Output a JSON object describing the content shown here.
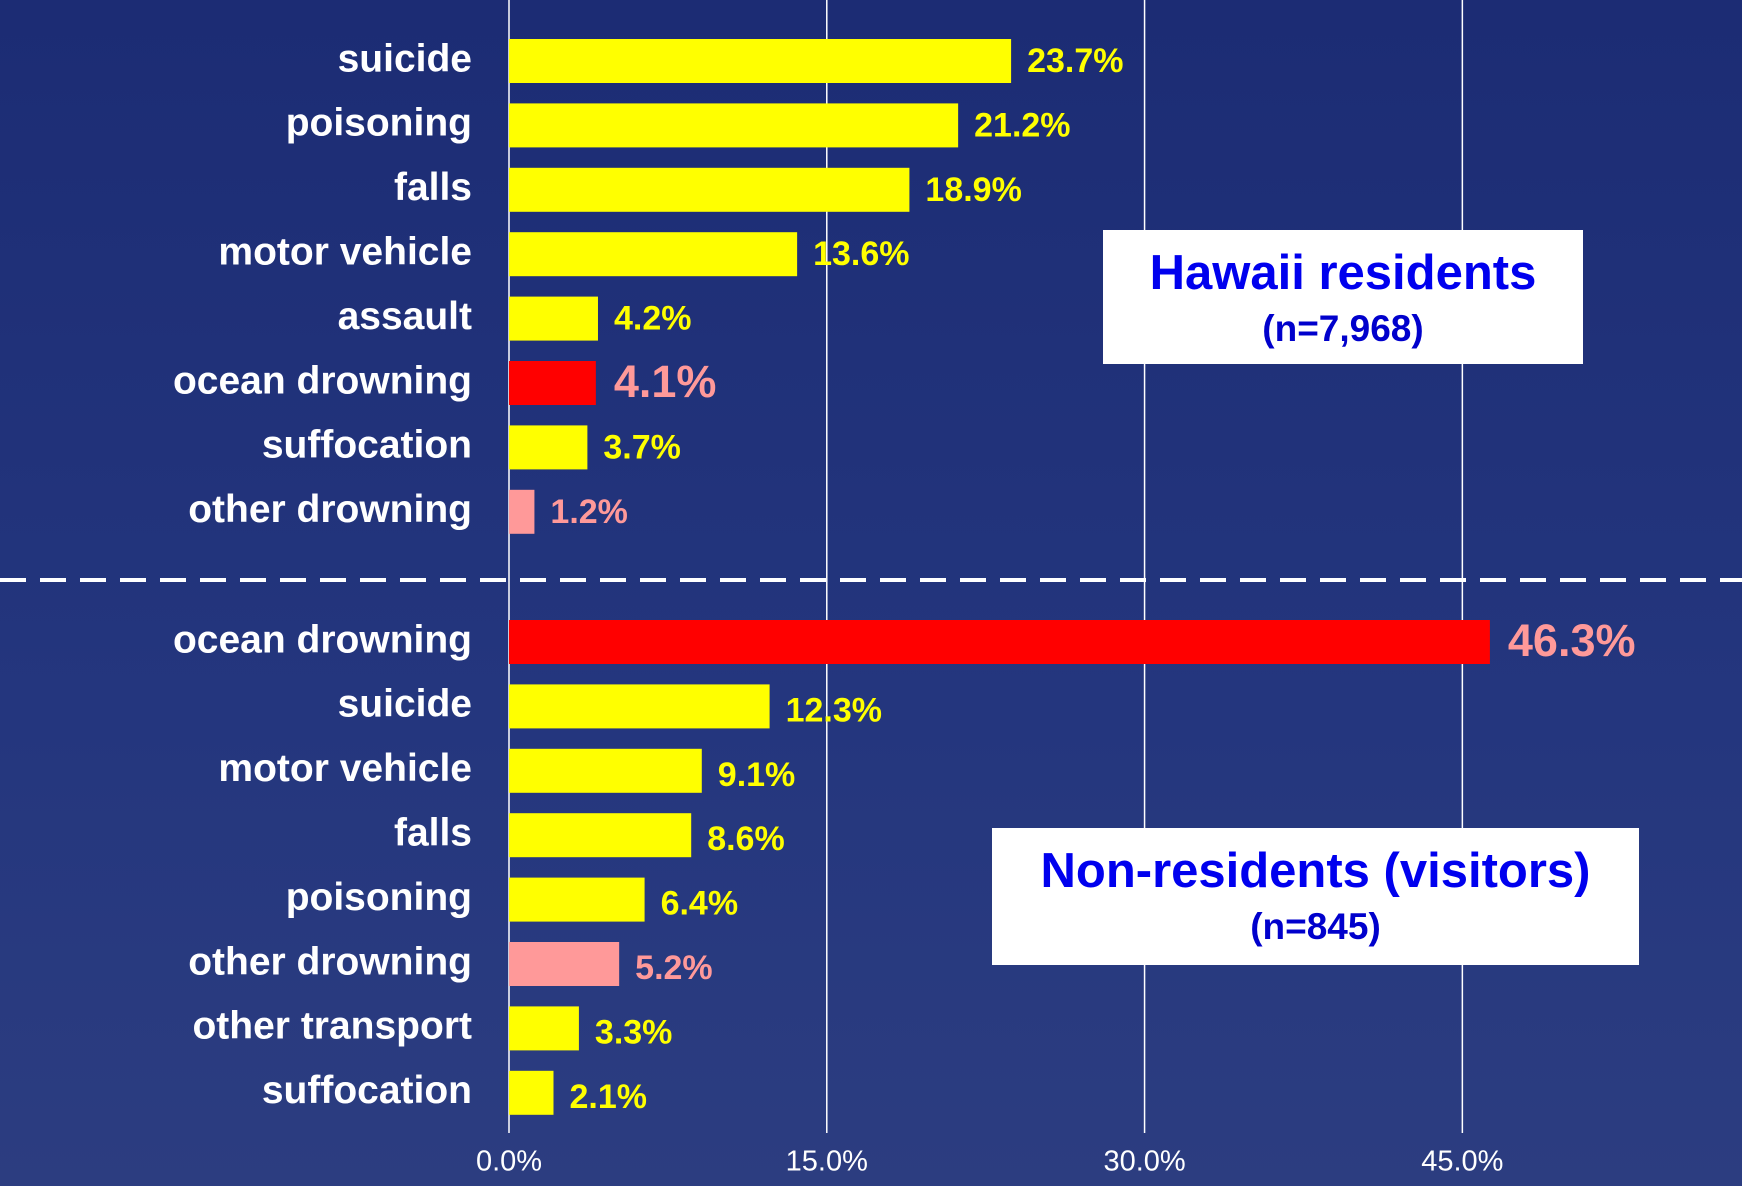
{
  "chart_data": [
    {
      "type": "bar",
      "orientation": "horizontal",
      "annotation": {
        "title": "Hawaii residents",
        "subtitle": "(n=7,968)"
      },
      "categories": [
        "suicide",
        "poisoning",
        "falls",
        "motor vehicle",
        "assault",
        "ocean drowning",
        "suffocation",
        "other drowning"
      ],
      "values": [
        23.7,
        21.2,
        18.9,
        13.6,
        4.2,
        4.1,
        3.7,
        1.2
      ],
      "value_labels": [
        "23.7%",
        "21.2%",
        "18.9%",
        "13.6%",
        "4.2%",
        "4.1%",
        "3.7%",
        "1.2%"
      ],
      "colors": [
        "#ffff00",
        "#ffff00",
        "#ffff00",
        "#ffff00",
        "#ffff00",
        "#ff0000",
        "#ffff00",
        "#ff9999"
      ],
      "xlim": [
        0,
        58.2
      ]
    },
    {
      "type": "bar",
      "orientation": "horizontal",
      "annotation": {
        "title": "Non-residents (visitors)",
        "subtitle": "(n=845)"
      },
      "categories": [
        "ocean drowning",
        "suicide",
        "motor vehicle",
        "falls",
        "poisoning",
        "other drowning",
        "other transport",
        "suffocation"
      ],
      "values": [
        46.3,
        12.3,
        9.1,
        8.6,
        6.4,
        5.2,
        3.3,
        2.1
      ],
      "value_labels": [
        "46.3%",
        "12.3%",
        "9.1%",
        "8.6%",
        "6.4%",
        "5.2%",
        "3.3%",
        "2.1%"
      ],
      "colors": [
        "#ff0000",
        "#ffff00",
        "#ffff00",
        "#ffff00",
        "#ffff00",
        "#ff9999",
        "#ffff00",
        "#ffff00"
      ],
      "xlim": [
        0,
        58.2
      ],
      "xticks": [
        {
          "value": 0,
          "label": "0.0%"
        },
        {
          "value": 15,
          "label": "15.0%"
        },
        {
          "value": 30,
          "label": "30.0%"
        },
        {
          "value": 45,
          "label": "45.0%"
        }
      ],
      "grid": true
    }
  ]
}
